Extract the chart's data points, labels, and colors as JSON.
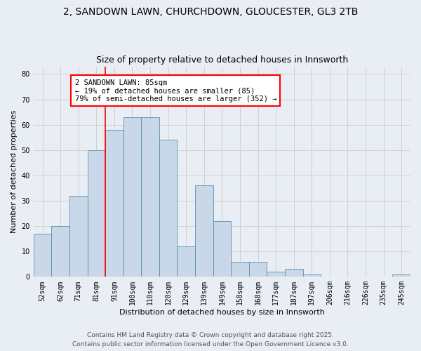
{
  "title_line1": "2, SANDOWN LAWN, CHURCHDOWN, GLOUCESTER, GL3 2TB",
  "title_line2": "Size of property relative to detached houses in Innsworth",
  "xlabel": "Distribution of detached houses by size in Innsworth",
  "ylabel": "Number of detached properties",
  "categories": [
    "52sqm",
    "62sqm",
    "71sqm",
    "81sqm",
    "91sqm",
    "100sqm",
    "110sqm",
    "120sqm",
    "129sqm",
    "139sqm",
    "149sqm",
    "158sqm",
    "168sqm",
    "177sqm",
    "187sqm",
    "197sqm",
    "206sqm",
    "216sqm",
    "226sqm",
    "235sqm",
    "245sqm"
  ],
  "values": [
    17,
    20,
    32,
    50,
    58,
    63,
    63,
    54,
    12,
    36,
    22,
    6,
    6,
    2,
    3,
    1,
    0,
    0,
    0,
    0,
    1
  ],
  "bar_color": "#c8d8e8",
  "bar_edge_color": "#5a8db0",
  "red_line_x": 3.5,
  "annotation_text": "2 SANDOWN LAWN: 85sqm\n← 19% of detached houses are smaller (85)\n79% of semi-detached houses are larger (352) →",
  "annotation_box_color": "white",
  "annotation_box_edge_color": "red",
  "ylim": [
    0,
    83
  ],
  "yticks": [
    0,
    10,
    20,
    30,
    40,
    50,
    60,
    70,
    80
  ],
  "grid_color": "#cccccc",
  "background_color": "#e8eef4",
  "footer_line1": "Contains HM Land Registry data © Crown copyright and database right 2025.",
  "footer_line2": "Contains public sector information licensed under the Open Government Licence v3.0.",
  "title_fontsize": 10,
  "subtitle_fontsize": 9,
  "axis_label_fontsize": 8,
  "tick_fontsize": 7,
  "annotation_fontsize": 7.5,
  "footer_fontsize": 6.5
}
